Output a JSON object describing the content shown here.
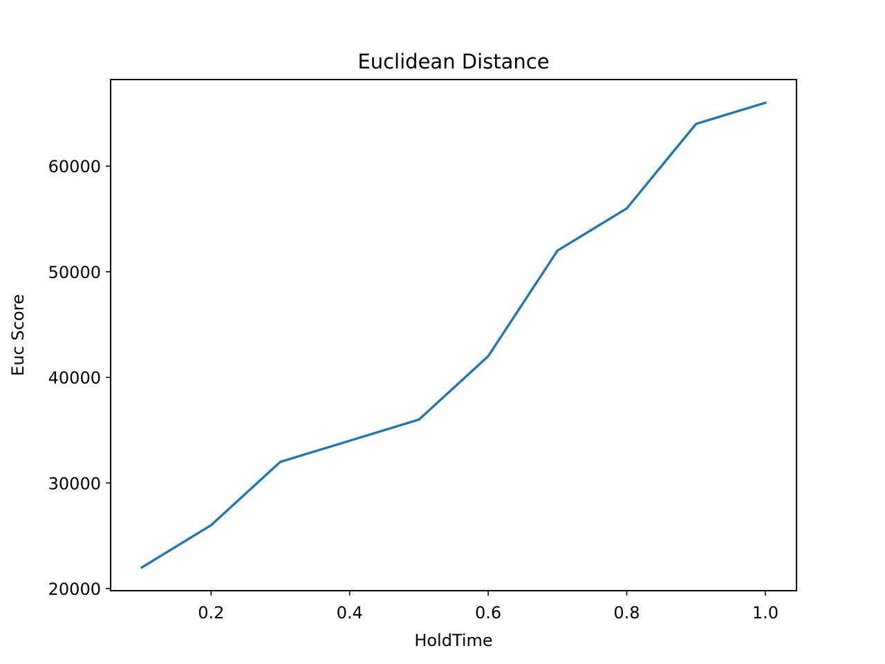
{
  "chart_data": {
    "type": "line",
    "title": "Euclidean Distance",
    "xlabel": "HoldTime",
    "ylabel": "Euc Score",
    "x": [
      0.1,
      0.2,
      0.3,
      0.4,
      0.5,
      0.6,
      0.7,
      0.8,
      0.9,
      1.0
    ],
    "series": [
      {
        "values": [
          22000,
          26000,
          32000,
          34000,
          36000,
          42000,
          52000,
          56000,
          64000,
          66000
        ],
        "color": "#1f77b4"
      }
    ],
    "xlim": [
      0.055,
      1.045
    ],
    "ylim": [
      19800,
      68200
    ],
    "xticks": [
      0.2,
      0.4,
      0.6,
      0.8,
      1.0
    ],
    "xtick_labels": [
      "0.2",
      "0.4",
      "0.6",
      "0.8",
      "1.0"
    ],
    "yticks": [
      20000,
      30000,
      40000,
      50000,
      60000
    ],
    "ytick_labels": [
      "20000",
      "30000",
      "40000",
      "50000",
      "60000"
    ],
    "grid": false,
    "legend": "none"
  }
}
